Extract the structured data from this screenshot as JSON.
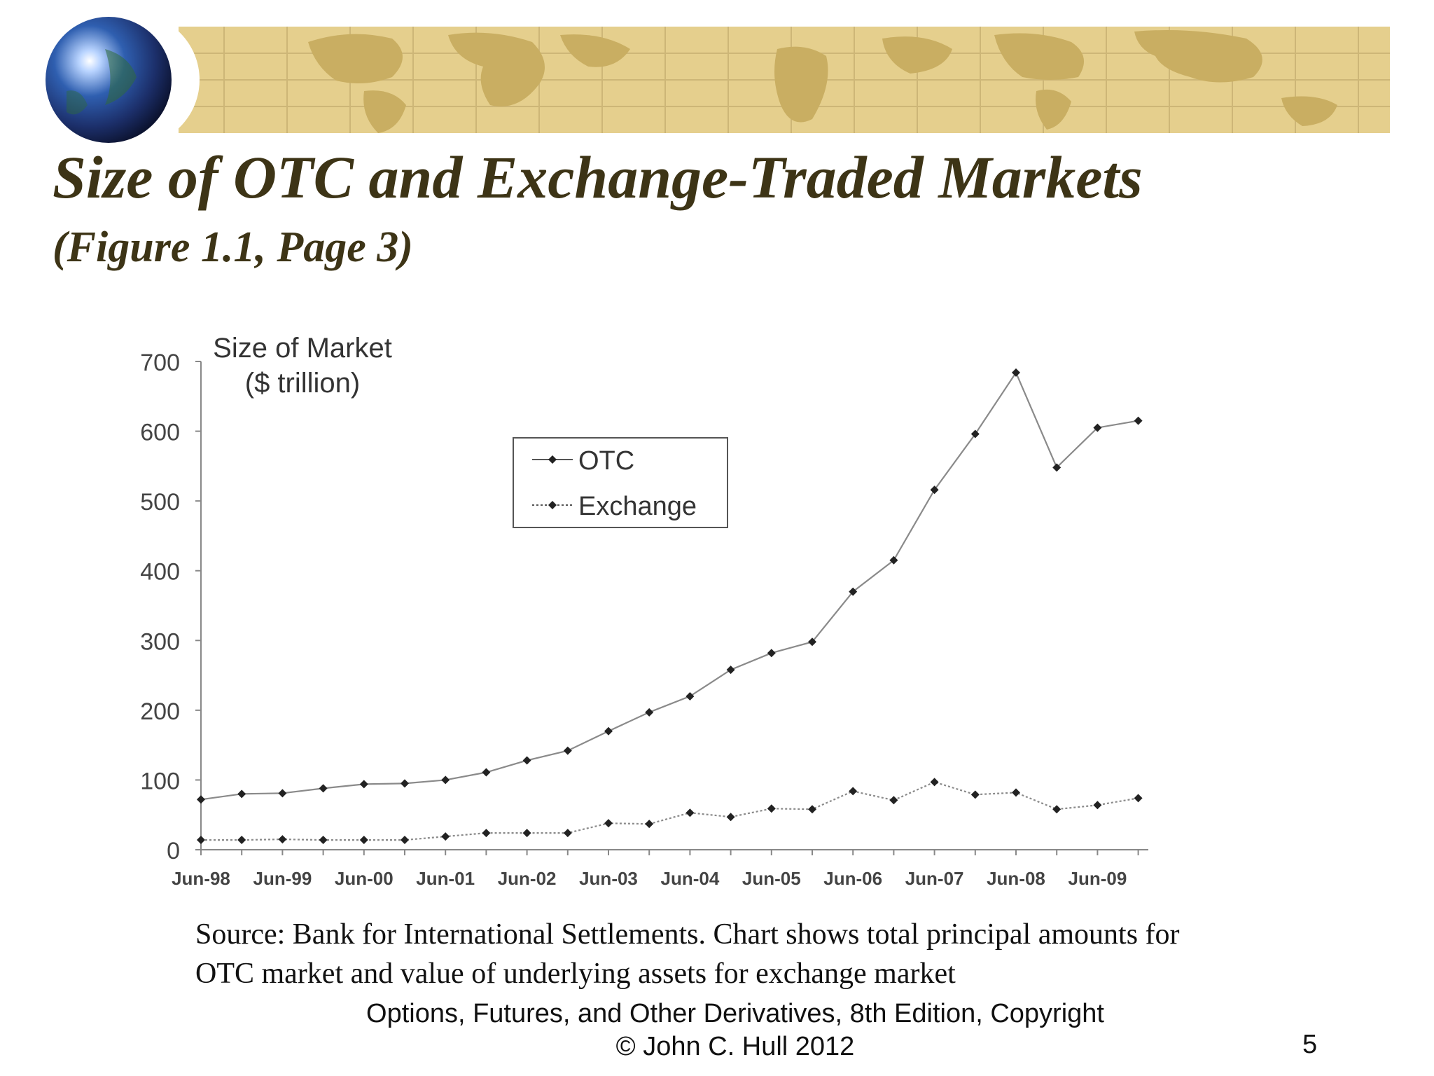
{
  "slide": {
    "title": "Size of OTC and Exchange-Traded Markets",
    "subtitle": "(Figure 1.1, Page 3)",
    "source_line1": "Source: Bank for International Settlements. Chart shows total principal amounts for",
    "source_line2": "OTC market and value of underlying assets for exchange market",
    "footer_line1": "Options, Futures, and Other Derivatives, 8th Edition, Copyright",
    "footer_line2": "© John C. Hull 2012",
    "page_number": "5"
  },
  "colors": {
    "banner": "#e5cf8d",
    "banner_land": "#c9ae62",
    "title": "#3d3416",
    "line": "#8a8a8a",
    "marker": "#222222"
  },
  "decor": {
    "banner_icon": "world-map-banner",
    "globe_icon": "globe-icon"
  },
  "chart_data": {
    "type": "line",
    "ylabel_line1": "Size of Market",
    "ylabel_line2": "($ trillion)",
    "ylim": [
      0,
      700
    ],
    "yticks": [
      0,
      100,
      200,
      300,
      400,
      500,
      600,
      700
    ],
    "x": [
      "Jun-98",
      "Dec-98",
      "Jun-99",
      "Dec-99",
      "Jun-00",
      "Dec-00",
      "Jun-01",
      "Dec-01",
      "Jun-02",
      "Dec-02",
      "Jun-03",
      "Dec-03",
      "Jun-04",
      "Dec-04",
      "Jun-05",
      "Dec-05",
      "Jun-06",
      "Dec-06",
      "Jun-07",
      "Dec-07",
      "Jun-08",
      "Dec-08",
      "Jun-09",
      "Dec-09"
    ],
    "xtick_labels": [
      "Jun-98",
      "Jun-99",
      "Jun-00",
      "Jun-01",
      "Jun-02",
      "Jun-03",
      "Jun-04",
      "Jun-05",
      "Jun-06",
      "Jun-07",
      "Jun-08",
      "Jun-09"
    ],
    "legend": [
      "OTC",
      "Exchange"
    ],
    "legend_position": "upper-center",
    "series": [
      {
        "name": "OTC",
        "style": "solid",
        "values": [
          72,
          80,
          81,
          88,
          94,
          95,
          100,
          111,
          128,
          142,
          170,
          197,
          220,
          258,
          282,
          298,
          370,
          415,
          516,
          596,
          684,
          548,
          605,
          615
        ]
      },
      {
        "name": "Exchange",
        "style": "dotted",
        "values": [
          14,
          14,
          15,
          14,
          14,
          14,
          19,
          24,
          24,
          24,
          38,
          37,
          53,
          47,
          59,
          58,
          84,
          71,
          97,
          79,
          82,
          58,
          64,
          74
        ]
      }
    ]
  }
}
